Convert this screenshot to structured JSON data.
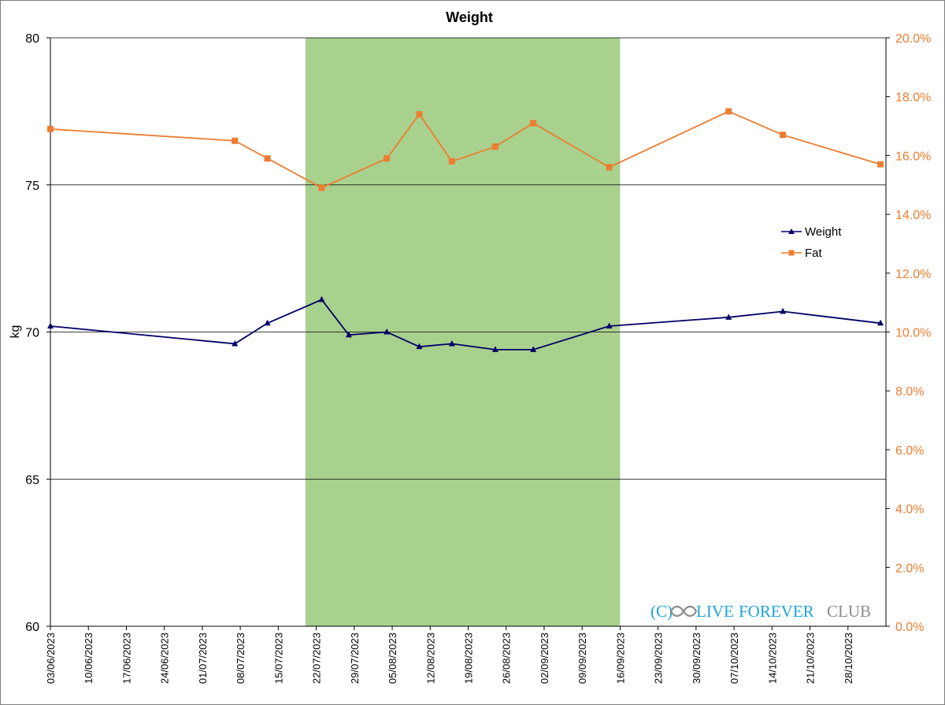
{
  "chart_data": {
    "type": "line",
    "title": "Weight",
    "ylabel": "kg",
    "ylim": [
      60,
      80
    ],
    "y_ticks": [
      "60",
      "65",
      "70",
      "75",
      "80"
    ],
    "y2lim": [
      0,
      20
    ],
    "y2_ticks": [
      "0.0%",
      "2.0%",
      "4.0%",
      "6.0%",
      "8.0%",
      "10.0%",
      "12.0%",
      "14.0%",
      "16.0%",
      "18.0%",
      "20.0%"
    ],
    "x_range": [
      "2023-06-03",
      "2023-11-04"
    ],
    "x_ticks": [
      "03/06/2023",
      "10/06/2023",
      "17/06/2023",
      "24/06/2023",
      "01/07/2023",
      "08/07/2023",
      "15/07/2023",
      "22/07/2023",
      "29/07/2023",
      "05/08/2023",
      "12/08/2023",
      "19/08/2023",
      "26/08/2023",
      "02/09/2023",
      "09/09/2023",
      "16/09/2023",
      "23/09/2023",
      "30/09/2023",
      "07/10/2023",
      "14/10/2023",
      "21/10/2023",
      "28/10/2023"
    ],
    "highlight_range": [
      "2023-07-20",
      "2023-09-16"
    ],
    "grid": "horizontal major lines",
    "legend_position": "right",
    "series": [
      {
        "name": "Weight",
        "axis": "left",
        "color": "#000066",
        "marker": "triangle",
        "points": [
          {
            "x": "2023-06-03",
            "y": 70.2
          },
          {
            "x": "2023-07-07",
            "y": 69.6
          },
          {
            "x": "2023-07-13",
            "y": 70.3
          },
          {
            "x": "2023-07-23",
            "y": 71.1
          },
          {
            "x": "2023-07-28",
            "y": 69.9
          },
          {
            "x": "2023-08-04",
            "y": 70.0
          },
          {
            "x": "2023-08-10",
            "y": 69.5
          },
          {
            "x": "2023-08-16",
            "y": 69.6
          },
          {
            "x": "2023-08-24",
            "y": 69.4
          },
          {
            "x": "2023-08-31",
            "y": 69.4
          },
          {
            "x": "2023-09-14",
            "y": 70.2
          },
          {
            "x": "2023-10-06",
            "y": 70.5
          },
          {
            "x": "2023-10-16",
            "y": 70.7
          },
          {
            "x": "2023-11-03",
            "y": 70.3
          }
        ]
      },
      {
        "name": "Fat",
        "axis": "right",
        "color": "#ED7D31",
        "marker": "square",
        "points": [
          {
            "x": "2023-06-03",
            "y": 16.9
          },
          {
            "x": "2023-07-07",
            "y": 16.5
          },
          {
            "x": "2023-07-13",
            "y": 15.9
          },
          {
            "x": "2023-07-23",
            "y": 14.9
          },
          {
            "x": "2023-08-04",
            "y": 15.9
          },
          {
            "x": "2023-08-10",
            "y": 17.4
          },
          {
            "x": "2023-08-16",
            "y": 15.8
          },
          {
            "x": "2023-08-24",
            "y": 16.3
          },
          {
            "x": "2023-08-31",
            "y": 17.1
          },
          {
            "x": "2023-09-14",
            "y": 15.6
          },
          {
            "x": "2023-10-06",
            "y": 17.5
          },
          {
            "x": "2023-10-16",
            "y": 16.7
          },
          {
            "x": "2023-11-03",
            "y": 15.7
          }
        ]
      }
    ]
  },
  "colors": {
    "weight": "#000066",
    "fat": "#ED7D31",
    "highlight": "#A9D18E",
    "gridline": "#000000",
    "watermark_blue": "#1FA3DD",
    "watermark_gray": "#8C8C8C"
  },
  "watermark": {
    "prefix": "(C)",
    "word1": "LIVE",
    "word2": "FOREVER",
    "word3": "CLUB"
  }
}
